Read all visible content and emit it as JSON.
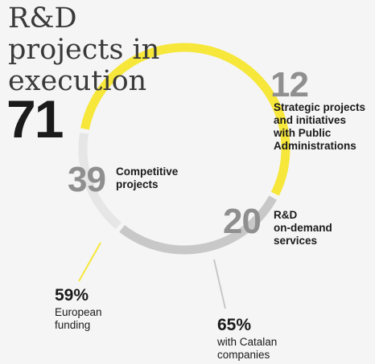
{
  "title_lines": [
    "R&D",
    "projects in",
    "execution"
  ],
  "total": "71",
  "colors": {
    "competitive": "#f6e73a",
    "demand": "#c8c8c8",
    "strategic": "#e6e6e6",
    "bignum": "#8f8f8f",
    "leader_yellow": "#f6e73a",
    "leader_gray": "#c8c8c8"
  },
  "chart_data": {
    "type": "pie",
    "total": 71,
    "categories": [
      "Competitive projects",
      "R&D on-demand services",
      "Strategic projects and initiatives with Public Administrations"
    ],
    "values": [
      39,
      20,
      12
    ]
  },
  "segments": [
    {
      "key": "competitive",
      "value": "39",
      "label_lines": [
        "Competitive",
        "projects"
      ]
    },
    {
      "key": "demand",
      "value": "20",
      "label_lines": [
        "R&D",
        "on-demand",
        "services"
      ]
    },
    {
      "key": "strategic",
      "value": "12",
      "label_lines": [
        "Strategic projects",
        "and initiatives",
        "with Public",
        "Administrations"
      ]
    }
  ],
  "callouts": [
    {
      "key": "european",
      "pct": "59%",
      "label_lines": [
        "European",
        "funding"
      ]
    },
    {
      "key": "catalan",
      "pct": "65%",
      "label_lines": [
        "with Catalan",
        "companies"
      ]
    }
  ]
}
